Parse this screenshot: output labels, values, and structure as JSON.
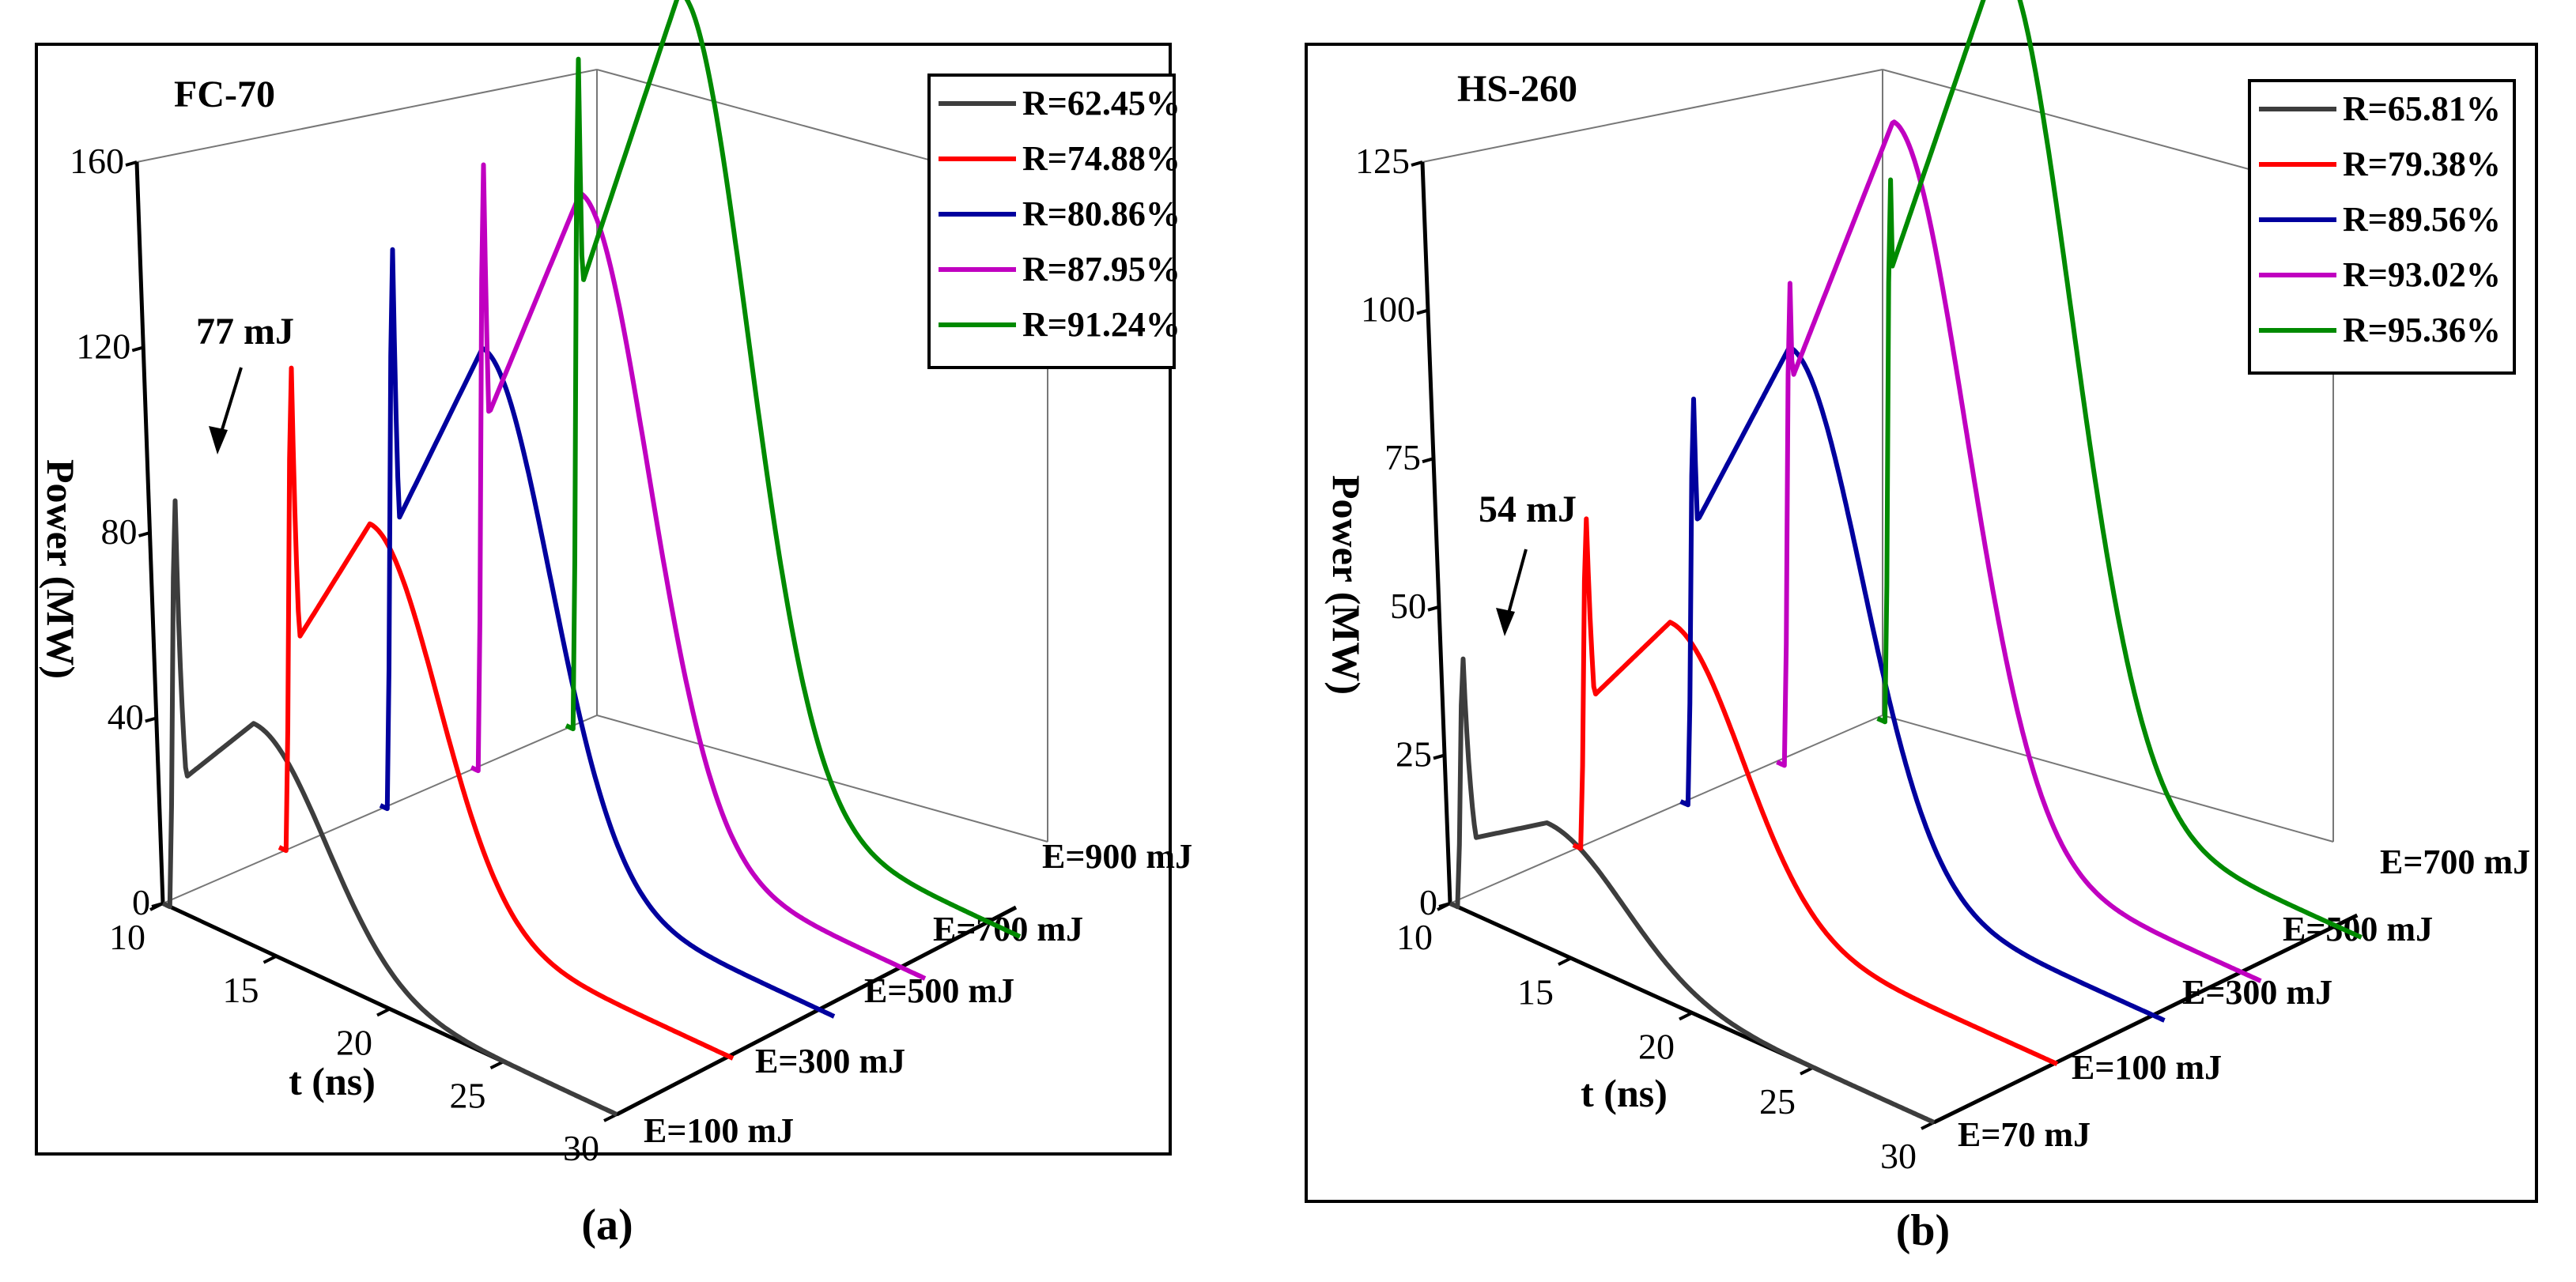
{
  "chart_data": [
    {
      "type": "line",
      "panel_label": "(a)",
      "title": "FC-70",
      "ylabel": "Power (MW)",
      "xlabel": "t (ns)",
      "y_ticks": [
        "0",
        "40",
        "80",
        "120",
        "160"
      ],
      "ylim": [
        0,
        160
      ],
      "x_ticks": [
        "10",
        "15",
        "20",
        "25",
        "30"
      ],
      "xlim": [
        10,
        30
      ],
      "annotation": "77 mJ",
      "legend_position": "top-right",
      "series": [
        {
          "name": "R=62.45%",
          "energy_label": "E=100 mJ",
          "color": "#3d3d3d",
          "spike_t": 10.5,
          "spike_peak": 96,
          "hump_peak": 48,
          "hump_t": 14.0,
          "hump_sigma": 3.2
        },
        {
          "name": "R=74.88%",
          "energy_label": "E=300 mJ",
          "color": "#ff0000",
          "spike_t": 10.5,
          "spike_peak": 114,
          "hump_peak": 79,
          "hump_t": 14.0,
          "hump_sigma": 3.0
        },
        {
          "name": "R=80.86%",
          "energy_label": "E=500 mJ",
          "color": "#00009e",
          "spike_t": 10.5,
          "spike_peak": 132,
          "hump_peak": 109,
          "hump_t": 14.5,
          "hump_sigma": 3.0
        },
        {
          "name": "R=87.95%",
          "energy_label": "E=700 mJ",
          "color": "#c000c0",
          "spike_t": 10.5,
          "spike_peak": 143,
          "hump_peak": 135,
          "hump_t": 14.8,
          "hump_sigma": 3.0
        },
        {
          "name": "R=91.24%",
          "energy_label": "E=900 mJ",
          "color": "#008a00",
          "spike_t": 10.5,
          "spike_peak": 158,
          "hump_peak": 170,
          "hump_t": 15.0,
          "hump_sigma": 3.0
        }
      ]
    },
    {
      "type": "line",
      "panel_label": "(b)",
      "title": "HS-260",
      "ylabel": "Power (MW)",
      "xlabel": "t (ns)",
      "y_ticks": [
        "0",
        "25",
        "50",
        "75",
        "100",
        "125"
      ],
      "ylim": [
        0,
        125
      ],
      "x_ticks": [
        "10",
        "15",
        "20",
        "25",
        "30"
      ],
      "xlim": [
        10,
        30
      ],
      "annotation": "54 mJ",
      "legend_position": "top-right",
      "series": [
        {
          "name": "R=65.81%",
          "energy_label": "E=70 mJ",
          "color": "#3d3d3d",
          "spike_t": 10.5,
          "spike_peak": 46,
          "hump_peak": 21,
          "hump_t": 14.0,
          "hump_sigma": 3.2
        },
        {
          "name": "R=79.38%",
          "energy_label": "E=100 mJ",
          "color": "#ff0000",
          "spike_t": 10.5,
          "spike_peak": 61,
          "hump_peak": 45,
          "hump_t": 14.0,
          "hump_sigma": 3.0
        },
        {
          "name": "R=89.56%",
          "energy_label": "E=300 mJ",
          "color": "#00009e",
          "spike_t": 10.5,
          "spike_peak": 75,
          "hump_peak": 85,
          "hump_t": 14.5,
          "hump_sigma": 3.0
        },
        {
          "name": "R=93.02%",
          "energy_label": "E=500 mJ",
          "color": "#c000c0",
          "spike_t": 10.5,
          "spike_peak": 89,
          "hump_peak": 117,
          "hump_t": 14.8,
          "hump_sigma": 3.0
        },
        {
          "name": "R=95.36%",
          "energy_label": "E=700 mJ",
          "color": "#008a00",
          "spike_t": 10.5,
          "spike_peak": 100,
          "hump_peak": 138,
          "hump_t": 15.0,
          "hump_sigma": 3.0
        }
      ]
    }
  ]
}
